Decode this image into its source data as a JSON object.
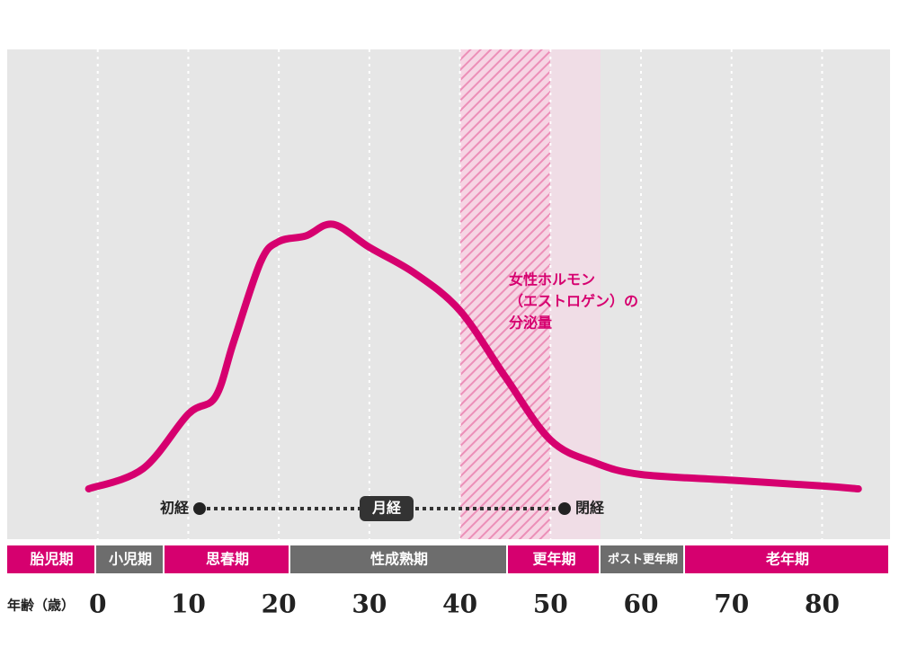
{
  "chart_data": {
    "type": "line",
    "x": [
      -1,
      5,
      10,
      13,
      15,
      18,
      20,
      23,
      26,
      30,
      35,
      40,
      45,
      50,
      55,
      60,
      70,
      80,
      84
    ],
    "series": [
      {
        "color": "#d6006f",
        "values": [
          5,
          12,
          31,
          37,
          56,
          84,
          91,
          93,
          97,
          89,
          80,
          67,
          44,
          22,
          14,
          10,
          8,
          6,
          5
        ]
      }
    ],
    "xlim": [
      -10,
      87.5
    ],
    "ylim": [
      0,
      100
    ],
    "xticks": [
      0,
      10,
      20,
      30,
      40,
      50,
      60,
      70,
      80
    ],
    "xlabel": "年齢（歳）",
    "annotation": [
      "女性ホルモン",
      "（エストロゲン）の",
      "分泌量"
    ],
    "menstruation": {
      "start": "初経",
      "middle": "月経",
      "end": "閉経"
    },
    "stages": [
      "胎児期",
      "小児期",
      "思春期",
      "性成熟期",
      "更年期",
      "ポスト更年期",
      "老年期"
    ],
    "grid": true
  }
}
